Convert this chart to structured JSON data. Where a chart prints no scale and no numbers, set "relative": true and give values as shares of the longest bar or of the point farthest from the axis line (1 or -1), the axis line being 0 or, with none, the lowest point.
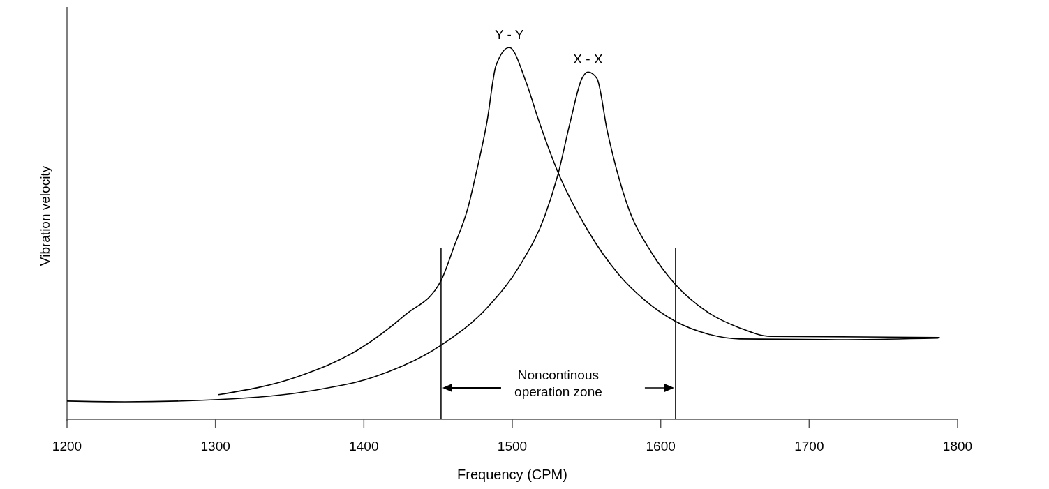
{
  "chart_data": {
    "type": "line",
    "xlabel": "Frequency (CPM)",
    "ylabel": "Vibration velocity",
    "relative": true,
    "xlim": [
      1200,
      1800
    ],
    "xticks": [
      1200,
      1300,
      1400,
      1500,
      1600,
      1700,
      1800
    ],
    "grid": false,
    "marker": "none",
    "line_style": "solid",
    "series": [
      {
        "name": "Y - Y",
        "color": "#000000",
        "x": [
          1302,
          1355,
          1397,
          1428,
          1452,
          1461,
          1470,
          1476,
          1483,
          1489,
          1498,
          1509,
          1518,
          1531,
          1551,
          1572,
          1589,
          1610,
          1632,
          1653,
          1719,
          1787
        ],
        "values": [
          0.066,
          0.114,
          0.189,
          0.281,
          0.373,
          0.467,
          0.567,
          0.668,
          0.801,
          0.951,
          1,
          0.91,
          0.801,
          0.662,
          0.507,
          0.388,
          0.321,
          0.263,
          0.229,
          0.216,
          0.214,
          0.218
        ]
      },
      {
        "name": "X - X",
        "color": "#000000",
        "x": [
          1200,
          1239,
          1302,
          1365,
          1407,
          1452,
          1484,
          1505,
          1522,
          1531,
          1539,
          1547,
          1551,
          1557,
          1564,
          1577,
          1594,
          1610,
          1632,
          1653,
          1674,
          1788
        ],
        "values": [
          0.049,
          0.047,
          0.053,
          0.077,
          0.114,
          0.199,
          0.304,
          0.413,
          0.548,
          0.662,
          0.799,
          0.917,
          0.934,
          0.917,
          0.775,
          0.582,
          0.447,
          0.362,
          0.287,
          0.246,
          0.223,
          0.22
        ]
      }
    ],
    "ref_lines": [
      {
        "axis": "x",
        "value": 1452,
        "color": "#000000"
      },
      {
        "axis": "x",
        "value": 1610,
        "color": "#000000"
      }
    ],
    "annotations": [
      "Noncontinous operation zone"
    ]
  }
}
